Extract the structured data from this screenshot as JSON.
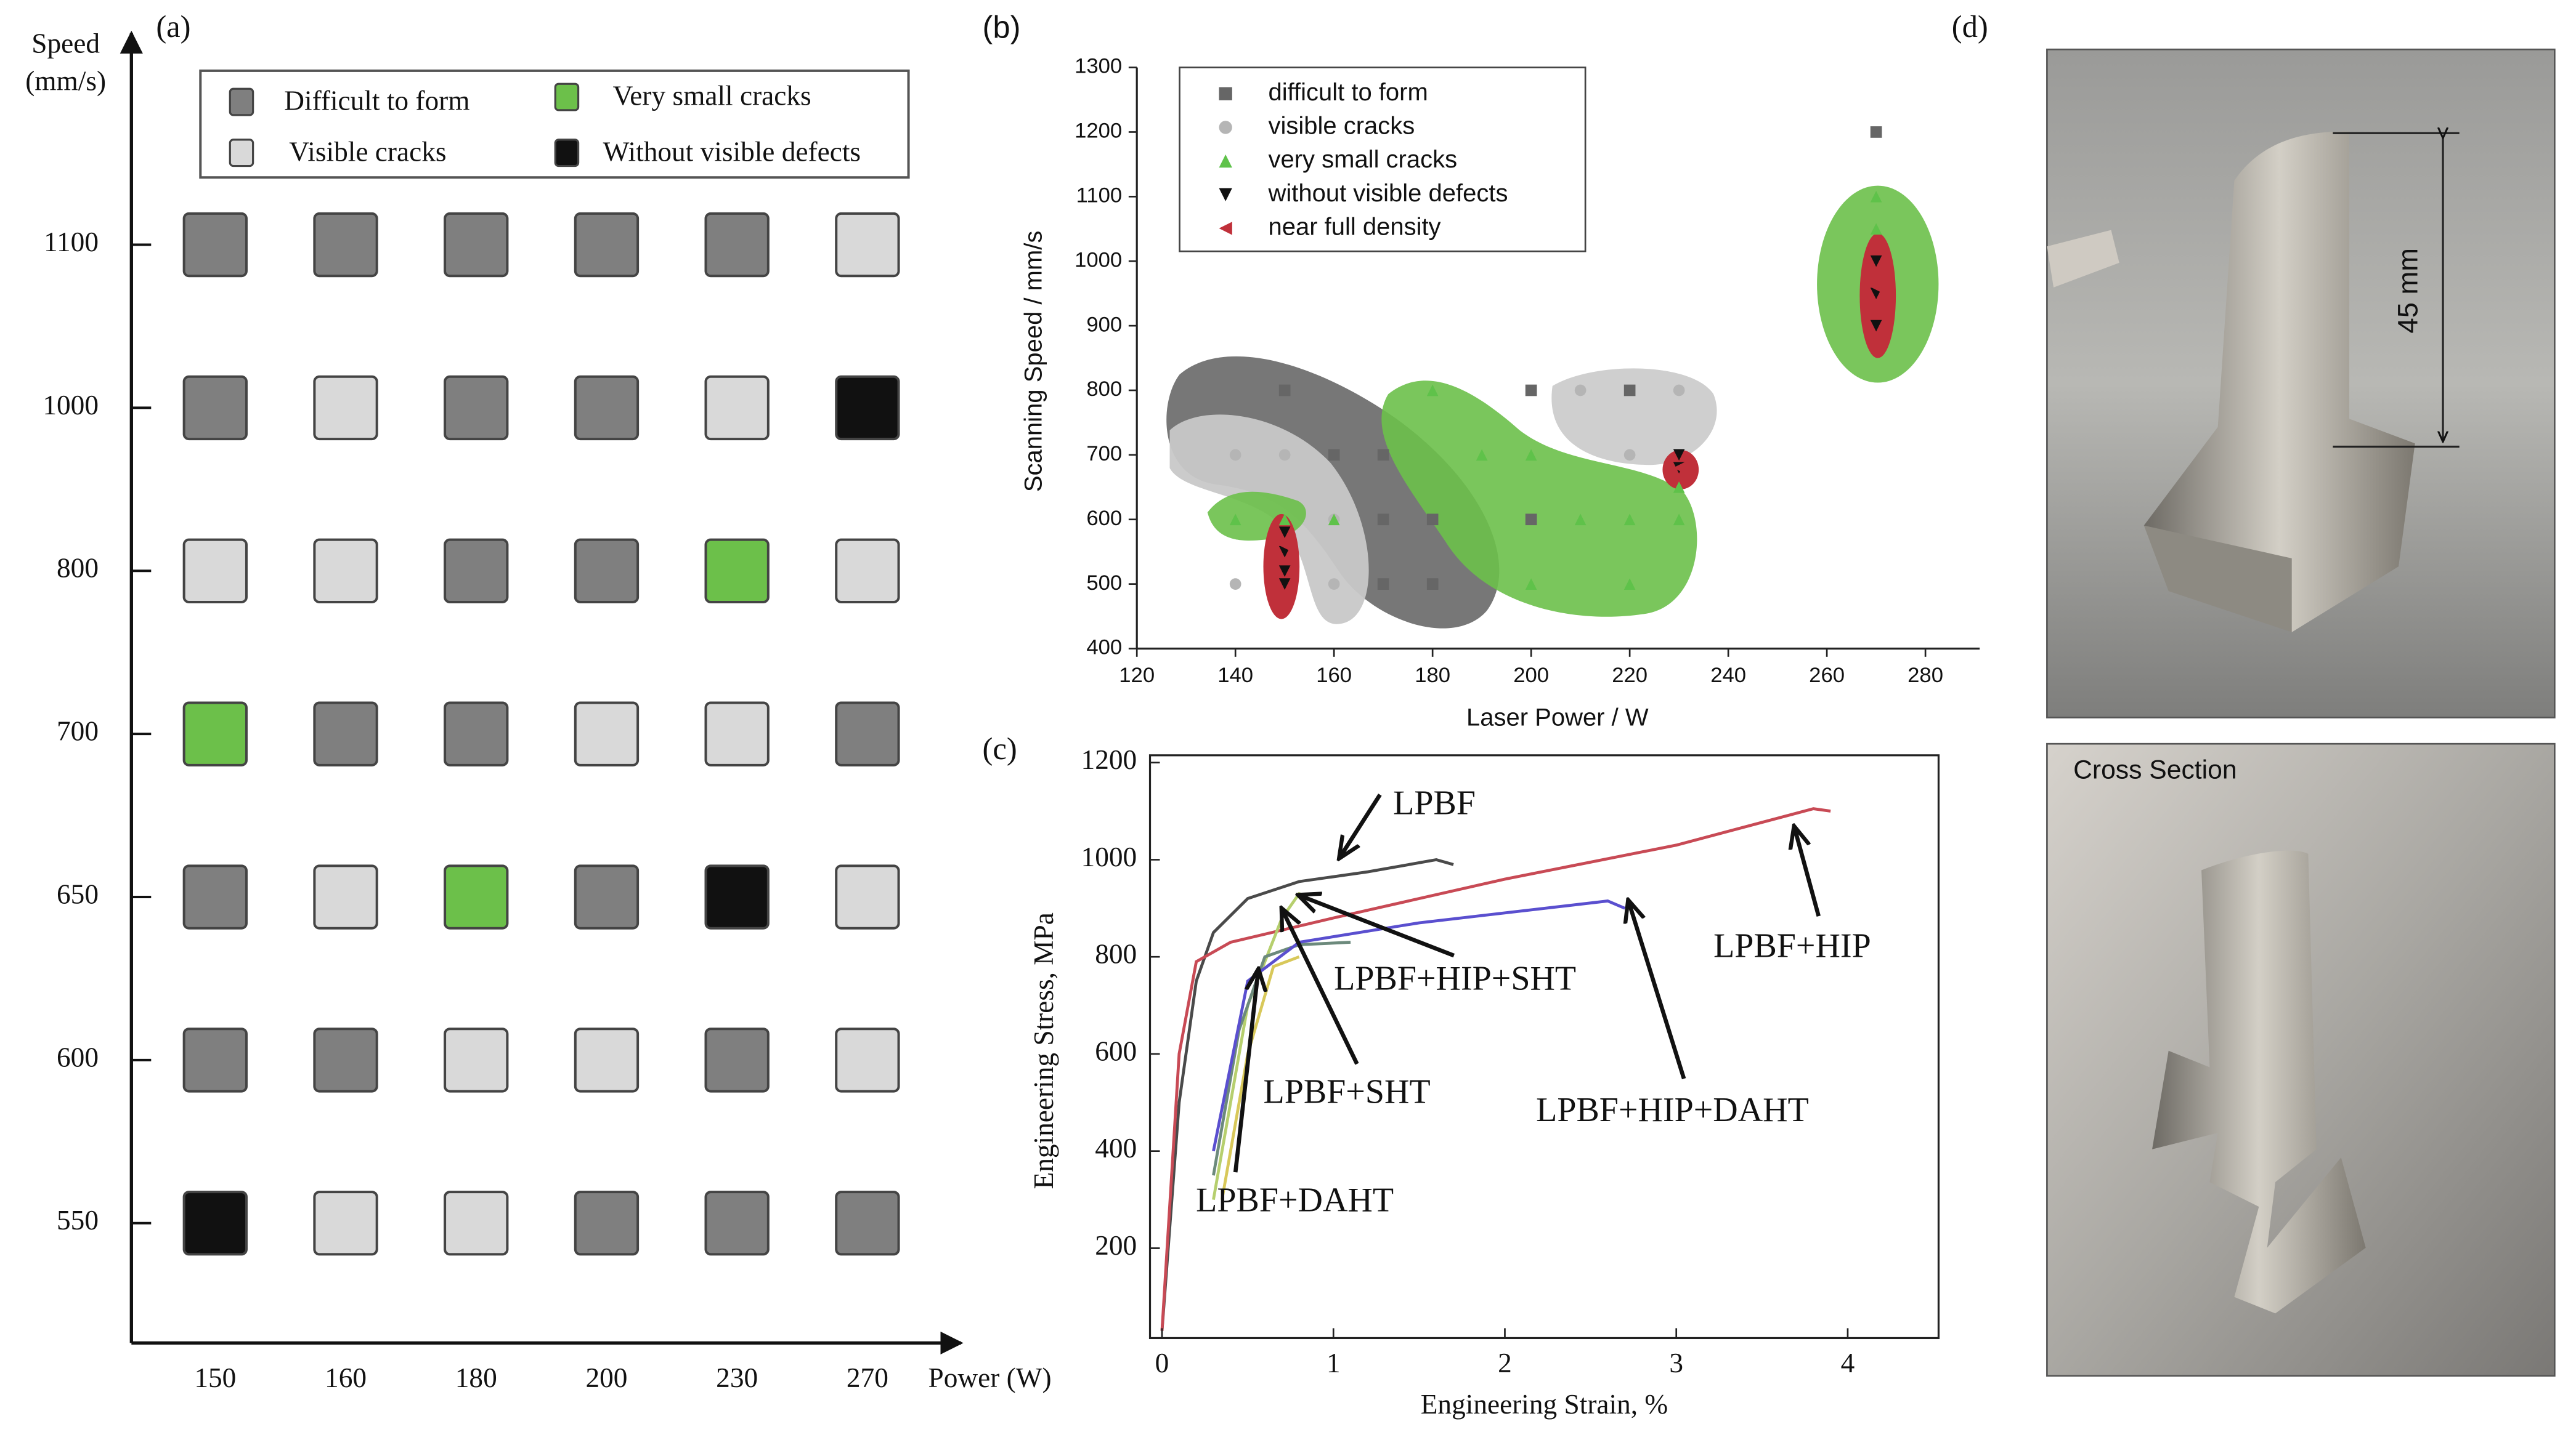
{
  "chart_data": [
    {
      "type": "matrix",
      "panel_label": "(a)",
      "y_label": [
        "Speed",
        "(mm/s)"
      ],
      "x_label": "Power (W)",
      "categories": [
        150,
        160,
        180,
        200,
        230,
        270
      ],
      "y_categories": [
        550,
        600,
        650,
        700,
        800,
        1000,
        1100
      ],
      "legend": [
        {
          "name": "Difficult to form",
          "color": "#7f7f7f"
        },
        {
          "name": "Very small cracks",
          "color": "#6cc04a"
        },
        {
          "name": "Visible cracks",
          "color": "#d9d9d9"
        },
        {
          "name": "Without visible defects",
          "color": "#111111"
        }
      ],
      "cells": [
        [
          3,
          2,
          2,
          0,
          0,
          0
        ],
        [
          0,
          0,
          2,
          2,
          0,
          2
        ],
        [
          0,
          2,
          1,
          0,
          3,
          2
        ],
        [
          1,
          0,
          0,
          2,
          2,
          0
        ],
        [
          2,
          2,
          0,
          0,
          1,
          2
        ],
        [
          0,
          2,
          0,
          0,
          2,
          3
        ],
        [
          0,
          0,
          0,
          0,
          0,
          2
        ]
      ]
    },
    {
      "type": "scatter",
      "panel_label": "(b)",
      "x_label": "Laser Power / W",
      "y_label": "Scanning Speed / mm/s",
      "xlim": [
        120,
        290
      ],
      "ylim": [
        400,
        1300
      ],
      "xticks": [
        120,
        140,
        160,
        180,
        200,
        220,
        240,
        260,
        280
      ],
      "yticks": [
        400,
        500,
        600,
        700,
        800,
        900,
        1000,
        1100,
        1200,
        1300
      ],
      "series": [
        {
          "name": "difficult to form",
          "color": "#666666",
          "marker": "square",
          "x": [
            150,
            160,
            170,
            170,
            180,
            170,
            180,
            200,
            200,
            220,
            270
          ],
          "values": [
            800,
            700,
            700,
            600,
            600,
            500,
            500,
            800,
            600,
            800,
            1200
          ]
        },
        {
          "name": "visible cracks",
          "color": "#b5b5b5",
          "marker": "circle",
          "x": [
            140,
            150,
            160,
            140,
            160,
            210,
            220,
            230
          ],
          "values": [
            700,
            700,
            600,
            500,
            500,
            800,
            700,
            800
          ]
        },
        {
          "name": "very small cracks",
          "color": "#5fc24a",
          "marker": "triangle-up",
          "x": [
            140,
            150,
            160,
            180,
            190,
            200,
            210,
            200,
            220,
            220,
            230,
            230,
            270,
            270
          ],
          "values": [
            600,
            600,
            600,
            800,
            700,
            700,
            600,
            500,
            500,
            600,
            600,
            650,
            1050,
            1100
          ]
        },
        {
          "name": "without visible defects",
          "color": "#111111",
          "marker": "triangle-down",
          "x": [
            150,
            150,
            150,
            150,
            230,
            230,
            270,
            270,
            270
          ],
          "values": [
            580,
            550,
            520,
            500,
            700,
            680,
            1000,
            950,
            900
          ]
        },
        {
          "name": "near full density",
          "color": "#c0303a",
          "marker": "triangle-left",
          "x": [
            150,
            230,
            270
          ],
          "values": [
            560,
            680,
            960
          ]
        }
      ]
    },
    {
      "type": "line",
      "panel_label": "(c)",
      "x_label": "Engineering Strain, %",
      "y_label": "Engineering Stress, MPa",
      "xlim": [
        -0.07,
        4.53
      ],
      "ylim": [
        15,
        1215
      ],
      "xticks": [
        0,
        1,
        2,
        3,
        4
      ],
      "yticks": [
        200,
        400,
        600,
        800,
        1000,
        1200
      ],
      "series": [
        {
          "name": "LPBF",
          "color": "#4a4a4a",
          "x": [
            0,
            0.1,
            0.2,
            0.3,
            0.5,
            0.8,
            1.2,
            1.6,
            1.7
          ],
          "values": [
            30,
            500,
            750,
            850,
            920,
            955,
            975,
            1000,
            990
          ]
        },
        {
          "name": "LPBF+HIP",
          "color": "#c84a55",
          "x": [
            0,
            0.1,
            0.2,
            0.4,
            1,
            2,
            3,
            3.8,
            3.9
          ],
          "values": [
            30,
            600,
            790,
            830,
            880,
            960,
            1030,
            1105,
            1100
          ]
        },
        {
          "name": "LPBF+HIP+SHT",
          "color": "#b6cf6e",
          "x": [
            0.3,
            0.5,
            0.7,
            0.8,
            0.85
          ],
          "values": [
            300,
            700,
            880,
            930,
            925
          ]
        },
        {
          "name": "LPBF+SHT",
          "color": "#6c8a7c",
          "x": [
            0.3,
            0.45,
            0.6,
            0.8,
            1.1
          ],
          "values": [
            350,
            650,
            800,
            825,
            830
          ]
        },
        {
          "name": "LPBF+HIP+DAHT",
          "color": "#5a4fcf",
          "x": [
            0.3,
            0.5,
            0.8,
            1.5,
            2.6,
            2.7
          ],
          "values": [
            400,
            750,
            830,
            870,
            915,
            900
          ]
        },
        {
          "name": "LPBF+DAHT",
          "color": "#d8c85a",
          "x": [
            0.35,
            0.5,
            0.65,
            0.8
          ],
          "values": [
            300,
            600,
            780,
            800
          ]
        }
      ]
    }
  ],
  "photos": {
    "panel_label": "(d)",
    "dimension": "45 mm",
    "caption": "Cross Section"
  }
}
